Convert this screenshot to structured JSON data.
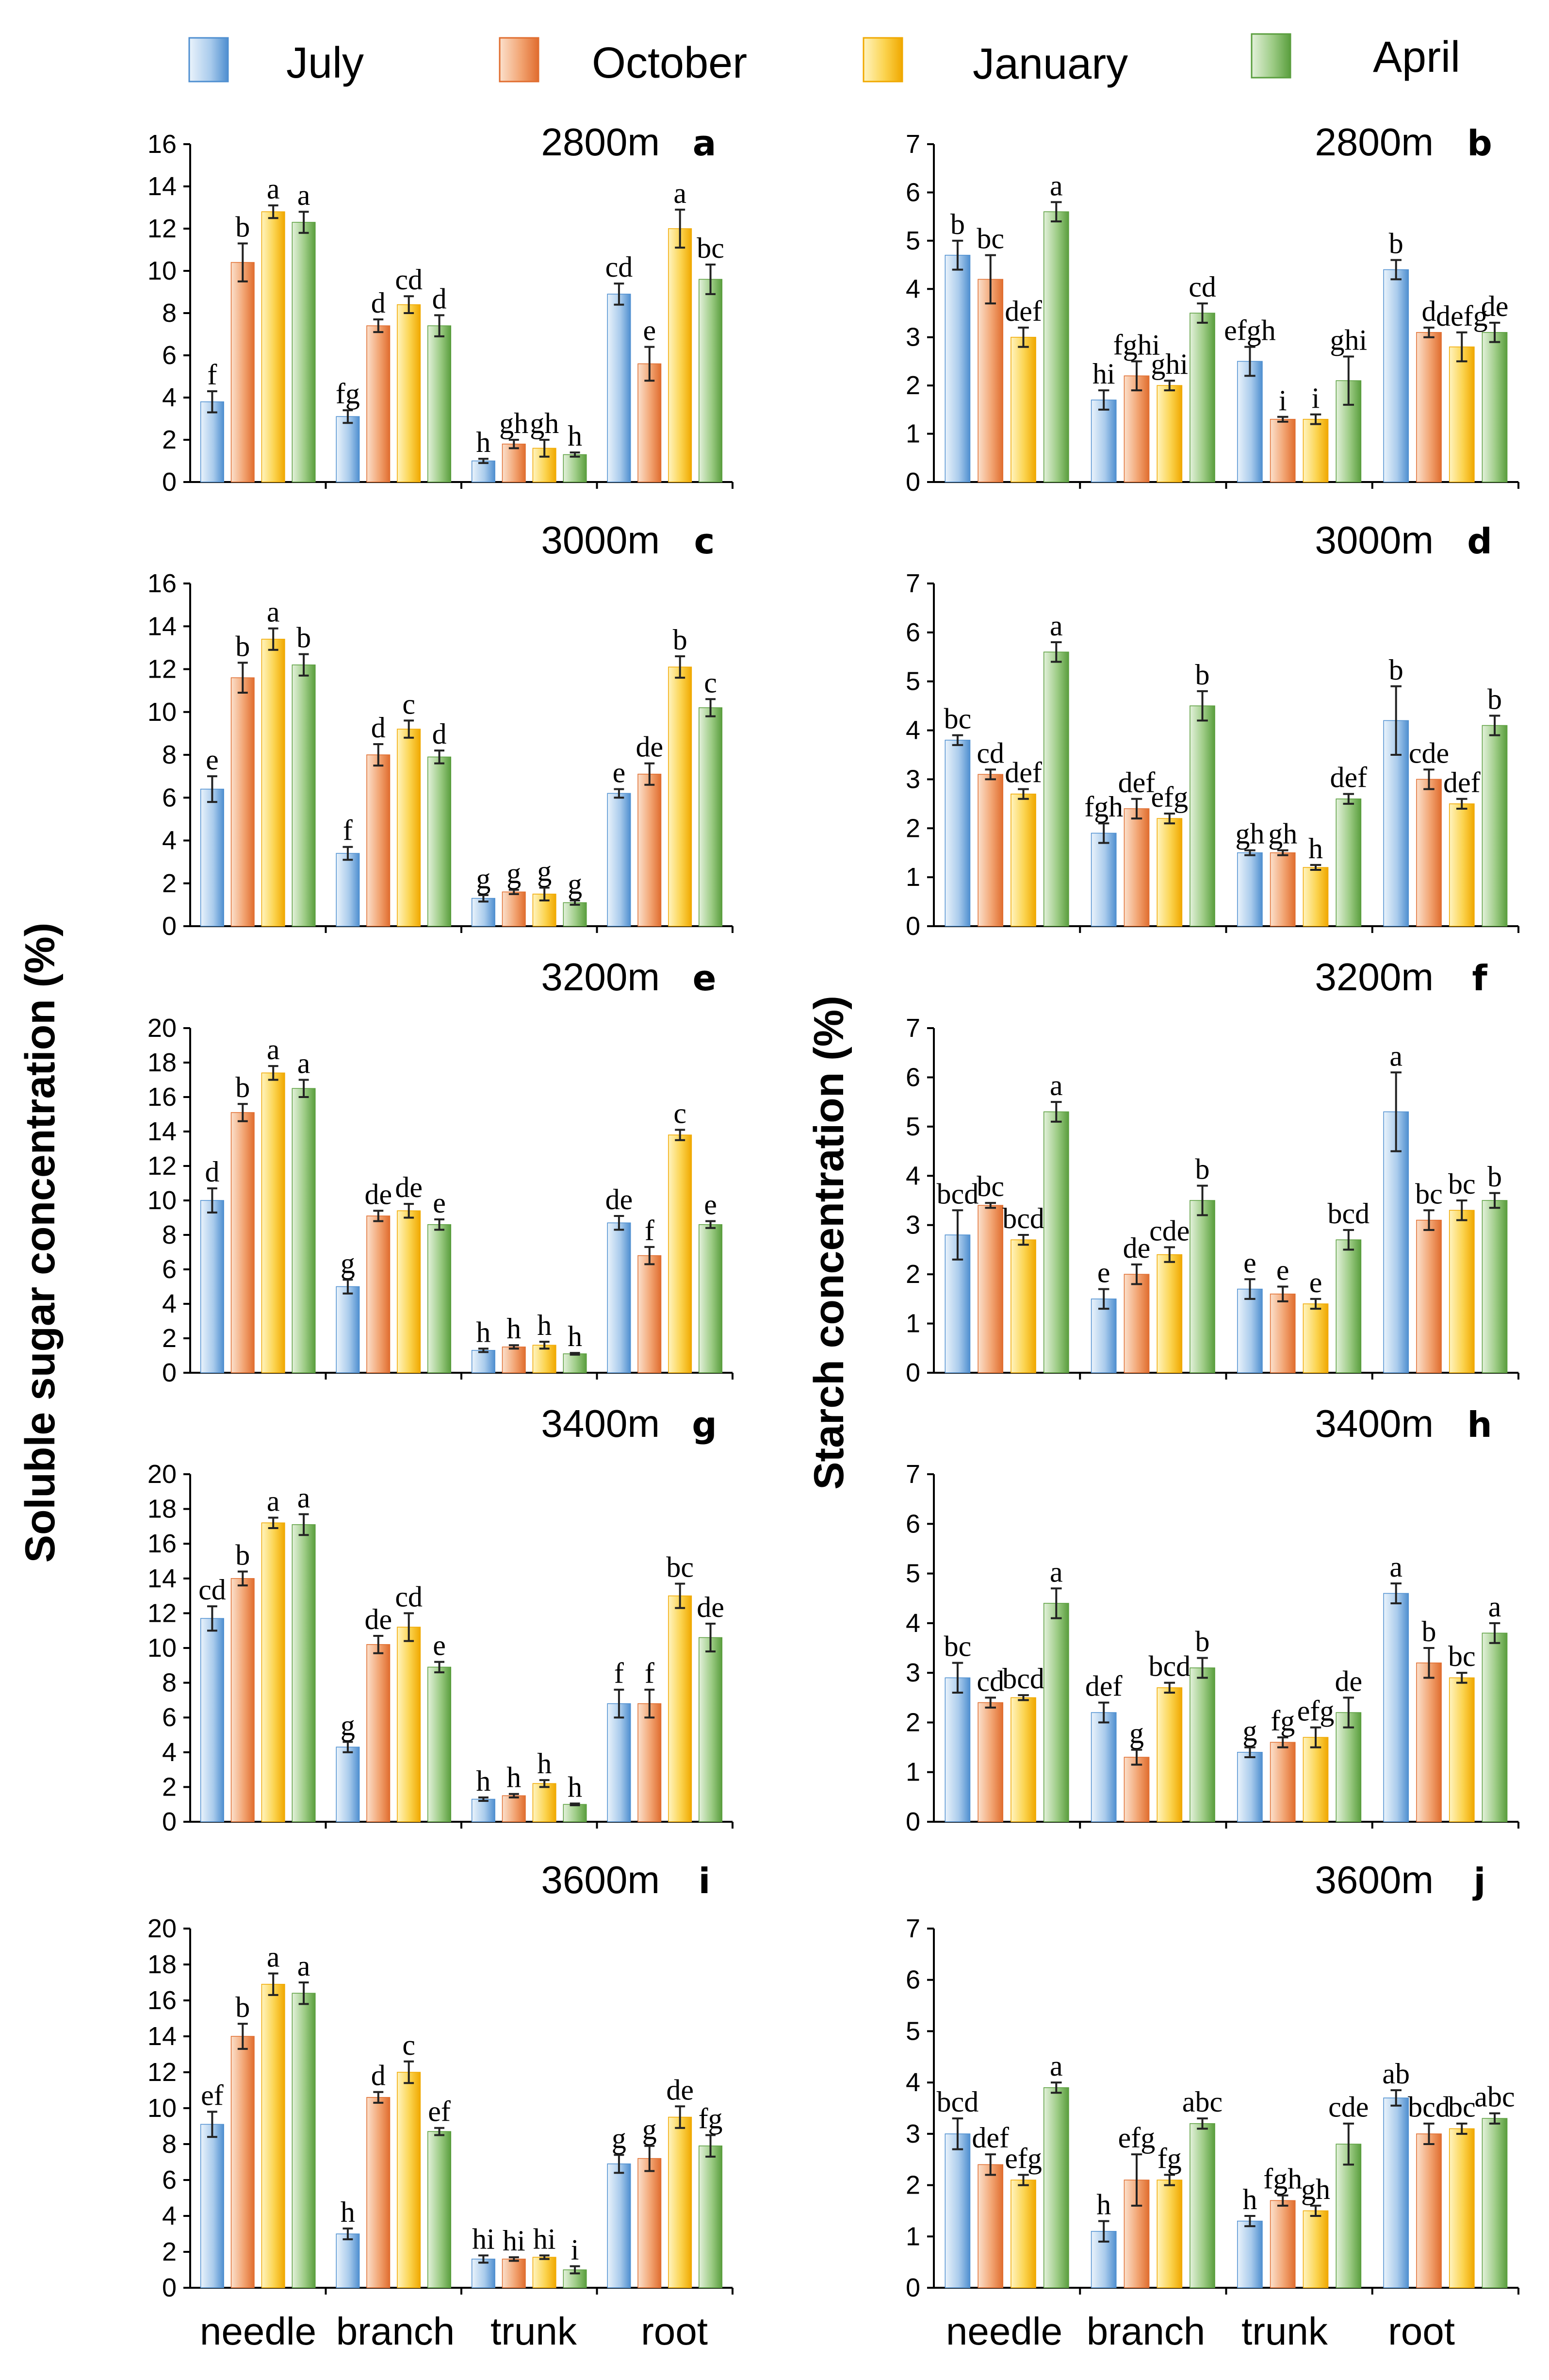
{
  "legend": {
    "items": [
      {
        "label": "July",
        "color": "#6fa8dc"
      },
      {
        "label": "October",
        "color": "#ec8a50"
      },
      {
        "label": "January",
        "color": "#f7c21b"
      },
      {
        "label": "April",
        "color": "#6eaf50"
      }
    ]
  },
  "axis_titles": {
    "left": "Soluble sugar concentration (%)",
    "right": "Starch concentration (%)"
  },
  "chart_data": [
    {
      "panel": "a",
      "title": "2800m",
      "type": "bar",
      "ylabel": "Soluble sugar concentration (%)",
      "ylim": [
        0,
        16
      ],
      "yticks": [
        "0",
        "2",
        "4",
        "6",
        "8",
        "10",
        "12",
        "14",
        "16"
      ],
      "categories": [
        "needle",
        "branch",
        "trunk",
        "root"
      ],
      "series": [
        {
          "name": "July",
          "values": [
            3.8,
            3.1,
            1.0,
            8.9
          ],
          "errors": [
            0.5,
            0.3,
            0.1,
            0.5
          ],
          "labels": [
            "f",
            "fg",
            "h",
            "cd"
          ]
        },
        {
          "name": "October",
          "values": [
            10.4,
            7.4,
            1.8,
            5.6
          ],
          "errors": [
            0.9,
            0.3,
            0.2,
            0.8
          ],
          "labels": [
            "b",
            "d",
            "gh",
            "e"
          ]
        },
        {
          "name": "January",
          "values": [
            12.8,
            8.4,
            1.6,
            12.0
          ],
          "errors": [
            0.3,
            0.4,
            0.4,
            0.9
          ],
          "labels": [
            "a",
            "cd",
            "gh",
            "a"
          ]
        },
        {
          "name": "April",
          "values": [
            12.3,
            7.4,
            1.3,
            9.6
          ],
          "errors": [
            0.5,
            0.5,
            0.1,
            0.7
          ],
          "labels": [
            "a",
            "d",
            "h",
            "bc"
          ]
        }
      ]
    },
    {
      "panel": "b",
      "title": "2800m",
      "type": "bar",
      "ylabel": "Starch concentration (%)",
      "ylim": [
        0,
        7
      ],
      "yticks": [
        "0",
        "1",
        "2",
        "3",
        "4",
        "5",
        "6",
        "7"
      ],
      "categories": [
        "needle",
        "branch",
        "trunk",
        "root"
      ],
      "series": [
        {
          "name": "July",
          "values": [
            4.7,
            1.7,
            2.5,
            4.4
          ],
          "errors": [
            0.3,
            0.2,
            0.3,
            0.2
          ],
          "labels": [
            "b",
            "hi",
            "efgh",
            "b"
          ]
        },
        {
          "name": "October",
          "values": [
            4.2,
            2.2,
            1.3,
            3.1
          ],
          "errors": [
            0.5,
            0.3,
            0.05,
            0.1
          ],
          "labels": [
            "bc",
            "fghi",
            "i",
            "d"
          ]
        },
        {
          "name": "January",
          "values": [
            3.0,
            2.0,
            1.3,
            2.8
          ],
          "errors": [
            0.2,
            0.1,
            0.1,
            0.3
          ],
          "labels": [
            "def",
            "ghi",
            "i",
            "defg"
          ]
        },
        {
          "name": "April",
          "values": [
            5.6,
            3.5,
            2.1,
            3.1
          ],
          "errors": [
            0.2,
            0.2,
            0.5,
            0.2
          ],
          "labels": [
            "a",
            "cd",
            "ghi",
            "de"
          ]
        }
      ]
    },
    {
      "panel": "c",
      "title": "3000m",
      "type": "bar",
      "ylabel": "Soluble sugar concentration (%)",
      "ylim": [
        0,
        16
      ],
      "yticks": [
        "0",
        "2",
        "4",
        "6",
        "8",
        "10",
        "12",
        "14",
        "16"
      ],
      "categories": [
        "needle",
        "branch",
        "trunk",
        "root"
      ],
      "series": [
        {
          "name": "July",
          "values": [
            6.4,
            3.4,
            1.3,
            6.2
          ],
          "errors": [
            0.6,
            0.3,
            0.15,
            0.2
          ],
          "labels": [
            "e",
            "f",
            "g",
            "e"
          ]
        },
        {
          "name": "October",
          "values": [
            11.6,
            8.0,
            1.6,
            7.1
          ],
          "errors": [
            0.7,
            0.5,
            0.1,
            0.5
          ],
          "labels": [
            "b",
            "d",
            "g",
            "de"
          ]
        },
        {
          "name": "January",
          "values": [
            13.4,
            9.2,
            1.5,
            12.1
          ],
          "errors": [
            0.5,
            0.4,
            0.3,
            0.5
          ],
          "labels": [
            "a",
            "c",
            "g",
            "b"
          ]
        },
        {
          "name": "April",
          "values": [
            12.2,
            7.9,
            1.1,
            10.2
          ],
          "errors": [
            0.5,
            0.3,
            0.1,
            0.4
          ],
          "labels": [
            "b",
            "d",
            "g",
            "c"
          ]
        }
      ]
    },
    {
      "panel": "d",
      "title": "3000m",
      "type": "bar",
      "ylabel": "Starch concentration (%)",
      "ylim": [
        0,
        7
      ],
      "yticks": [
        "0",
        "1",
        "2",
        "3",
        "4",
        "5",
        "6",
        "7"
      ],
      "categories": [
        "needle",
        "branch",
        "trunk",
        "root"
      ],
      "series": [
        {
          "name": "July",
          "values": [
            3.8,
            1.9,
            1.5,
            4.2
          ],
          "errors": [
            0.1,
            0.2,
            0.05,
            0.7
          ],
          "labels": [
            "bc",
            "fgh",
            "gh",
            "b"
          ]
        },
        {
          "name": "October",
          "values": [
            3.1,
            2.4,
            1.5,
            3.0
          ],
          "errors": [
            0.1,
            0.2,
            0.05,
            0.2
          ],
          "labels": [
            "cd",
            "def",
            "gh",
            "cde"
          ]
        },
        {
          "name": "January",
          "values": [
            2.7,
            2.2,
            1.2,
            2.5
          ],
          "errors": [
            0.1,
            0.1,
            0.05,
            0.1
          ],
          "labels": [
            "def",
            "efg",
            "h",
            "def"
          ]
        },
        {
          "name": "April",
          "values": [
            5.6,
            4.5,
            2.6,
            4.1
          ],
          "errors": [
            0.2,
            0.3,
            0.1,
            0.2
          ],
          "labels": [
            "a",
            "b",
            "def",
            "b"
          ]
        }
      ]
    },
    {
      "panel": "e",
      "title": "3200m",
      "type": "bar",
      "ylabel": "Soluble sugar concentration (%)",
      "ylim": [
        0,
        20
      ],
      "yticks": [
        "0",
        "2",
        "4",
        "6",
        "8",
        "10",
        "12",
        "14",
        "16",
        "18",
        "20"
      ],
      "categories": [
        "needle",
        "branch",
        "trunk",
        "root"
      ],
      "series": [
        {
          "name": "July",
          "values": [
            10.0,
            5.0,
            1.3,
            8.7
          ],
          "errors": [
            0.7,
            0.4,
            0.1,
            0.4
          ],
          "labels": [
            "d",
            "g",
            "h",
            "de"
          ]
        },
        {
          "name": "October",
          "values": [
            15.1,
            9.1,
            1.5,
            6.8
          ],
          "errors": [
            0.5,
            0.3,
            0.1,
            0.5
          ],
          "labels": [
            "b",
            "de",
            "h",
            "f"
          ]
        },
        {
          "name": "January",
          "values": [
            17.4,
            9.4,
            1.6,
            13.8
          ],
          "errors": [
            0.4,
            0.4,
            0.2,
            0.3
          ],
          "labels": [
            "a",
            "de",
            "h",
            "c"
          ]
        },
        {
          "name": "April",
          "values": [
            16.5,
            8.6,
            1.1,
            8.6
          ],
          "errors": [
            0.5,
            0.3,
            0.05,
            0.2
          ],
          "labels": [
            "a",
            "e",
            "h",
            "e"
          ]
        }
      ]
    },
    {
      "panel": "f",
      "title": "3200m",
      "type": "bar",
      "ylabel": "Starch concentration (%)",
      "ylim": [
        0,
        7
      ],
      "yticks": [
        "0",
        "1",
        "2",
        "3",
        "4",
        "5",
        "6",
        "7"
      ],
      "categories": [
        "needle",
        "branch",
        "trunk",
        "root"
      ],
      "series": [
        {
          "name": "July",
          "values": [
            2.8,
            1.5,
            1.7,
            5.3
          ],
          "errors": [
            0.5,
            0.2,
            0.2,
            0.8
          ],
          "labels": [
            "bcd",
            "e",
            "e",
            "a"
          ]
        },
        {
          "name": "October",
          "values": [
            3.4,
            2.0,
            1.6,
            3.1
          ],
          "errors": [
            0.05,
            0.2,
            0.15,
            0.2
          ],
          "labels": [
            "bc",
            "de",
            "e",
            "bc"
          ]
        },
        {
          "name": "January",
          "values": [
            2.7,
            2.4,
            1.4,
            3.3
          ],
          "errors": [
            0.1,
            0.15,
            0.1,
            0.2
          ],
          "labels": [
            "bcd",
            "cde",
            "e",
            "bc"
          ]
        },
        {
          "name": "April",
          "values": [
            5.3,
            3.5,
            2.7,
            3.5
          ],
          "errors": [
            0.2,
            0.3,
            0.2,
            0.15
          ],
          "labels": [
            "a",
            "b",
            "bcd",
            "b"
          ]
        }
      ]
    },
    {
      "panel": "g",
      "title": "3400m",
      "type": "bar",
      "ylabel": "Soluble sugar concentration (%)",
      "ylim": [
        0,
        20
      ],
      "yticks": [
        "0",
        "2",
        "4",
        "6",
        "8",
        "10",
        "12",
        "14",
        "16",
        "18",
        "20"
      ],
      "categories": [
        "needle",
        "branch",
        "trunk",
        "root"
      ],
      "series": [
        {
          "name": "July",
          "values": [
            11.7,
            4.3,
            1.3,
            6.8
          ],
          "errors": [
            0.7,
            0.3,
            0.1,
            0.8
          ],
          "labels": [
            "cd",
            "g",
            "h",
            "f"
          ]
        },
        {
          "name": "October",
          "values": [
            14.0,
            10.2,
            1.5,
            6.8
          ],
          "errors": [
            0.4,
            0.5,
            0.1,
            0.8
          ],
          "labels": [
            "b",
            "de",
            "h",
            "f"
          ]
        },
        {
          "name": "January",
          "values": [
            17.2,
            11.2,
            2.2,
            13.0
          ],
          "errors": [
            0.3,
            0.8,
            0.2,
            0.7
          ],
          "labels": [
            "a",
            "cd",
            "h",
            "bc"
          ]
        },
        {
          "name": "April",
          "values": [
            17.1,
            8.9,
            1.0,
            10.6
          ],
          "errors": [
            0.6,
            0.3,
            0.05,
            0.8
          ],
          "labels": [
            "a",
            "e",
            "h",
            "de"
          ]
        }
      ]
    },
    {
      "panel": "h",
      "title": "3400m",
      "type": "bar",
      "ylabel": "Starch concentration (%)",
      "ylim": [
        0,
        7
      ],
      "yticks": [
        "0",
        "1",
        "2",
        "3",
        "4",
        "5",
        "6",
        "7"
      ],
      "categories": [
        "needle",
        "branch",
        "trunk",
        "root"
      ],
      "series": [
        {
          "name": "July",
          "values": [
            2.9,
            2.2,
            1.4,
            4.6
          ],
          "errors": [
            0.3,
            0.2,
            0.1,
            0.2
          ],
          "labels": [
            "bc",
            "def",
            "g",
            "a"
          ]
        },
        {
          "name": "October",
          "values": [
            2.4,
            1.3,
            1.6,
            3.2
          ],
          "errors": [
            0.1,
            0.15,
            0.1,
            0.3
          ],
          "labels": [
            "cd",
            "g",
            "fg",
            "b"
          ]
        },
        {
          "name": "January",
          "values": [
            2.5,
            2.7,
            1.7,
            2.9
          ],
          "errors": [
            0.05,
            0.1,
            0.2,
            0.1
          ],
          "labels": [
            "bcd",
            "bcd",
            "efg",
            "bc"
          ]
        },
        {
          "name": "April",
          "values": [
            4.4,
            3.1,
            2.2,
            3.8
          ],
          "errors": [
            0.3,
            0.2,
            0.3,
            0.2
          ],
          "labels": [
            "a",
            "b",
            "de",
            "a"
          ]
        }
      ]
    },
    {
      "panel": "i",
      "title": "3600m",
      "type": "bar",
      "ylabel": "Soluble sugar concentration (%)",
      "ylim": [
        0,
        20
      ],
      "yticks": [
        "0",
        "2",
        "4",
        "6",
        "8",
        "10",
        "12",
        "14",
        "16",
        "18",
        "20"
      ],
      "categories": [
        "needle",
        "branch",
        "trunk",
        "root"
      ],
      "series": [
        {
          "name": "July",
          "values": [
            9.1,
            3.0,
            1.6,
            6.9
          ],
          "errors": [
            0.7,
            0.3,
            0.2,
            0.5
          ],
          "labels": [
            "ef",
            "h",
            "hi",
            "g"
          ]
        },
        {
          "name": "October",
          "values": [
            14.0,
            10.6,
            1.6,
            7.2
          ],
          "errors": [
            0.7,
            0.3,
            0.1,
            0.7
          ],
          "labels": [
            "b",
            "d",
            "hi",
            "g"
          ]
        },
        {
          "name": "January",
          "values": [
            16.9,
            12.0,
            1.7,
            9.5
          ],
          "errors": [
            0.6,
            0.6,
            0.1,
            0.6
          ],
          "labels": [
            "a",
            "c",
            "hi",
            "de"
          ]
        },
        {
          "name": "April",
          "values": [
            16.4,
            8.7,
            1.0,
            7.9
          ],
          "errors": [
            0.6,
            0.2,
            0.2,
            0.6
          ],
          "labels": [
            "a",
            "ef",
            "i",
            "fg"
          ]
        }
      ]
    },
    {
      "panel": "j",
      "title": "3600m",
      "type": "bar",
      "ylabel": "Starch concentration (%)",
      "ylim": [
        0,
        7
      ],
      "yticks": [
        "0",
        "1",
        "2",
        "3",
        "4",
        "5",
        "6",
        "7"
      ],
      "categories": [
        "needle",
        "branch",
        "trunk",
        "root"
      ],
      "series": [
        {
          "name": "July",
          "values": [
            3.0,
            1.1,
            1.3,
            3.7
          ],
          "errors": [
            0.3,
            0.2,
            0.1,
            0.15
          ],
          "labels": [
            "bcd",
            "h",
            "h",
            "ab"
          ]
        },
        {
          "name": "October",
          "values": [
            2.4,
            2.1,
            1.7,
            3.0
          ],
          "errors": [
            0.2,
            0.5,
            0.1,
            0.2
          ],
          "labels": [
            "def",
            "efg",
            "fgh",
            "bcd"
          ]
        },
        {
          "name": "January",
          "values": [
            2.1,
            2.1,
            1.5,
            3.1
          ],
          "errors": [
            0.1,
            0.1,
            0.1,
            0.1
          ],
          "labels": [
            "efg",
            "fg",
            "gh",
            "bc"
          ]
        },
        {
          "name": "April",
          "values": [
            3.9,
            3.2,
            2.8,
            3.3
          ],
          "errors": [
            0.1,
            0.1,
            0.4,
            0.1
          ],
          "labels": [
            "a",
            "abc",
            "cde",
            "abc"
          ]
        }
      ]
    }
  ],
  "x_axis_categories": [
    "needle",
    "branch",
    "trunk",
    "root"
  ]
}
